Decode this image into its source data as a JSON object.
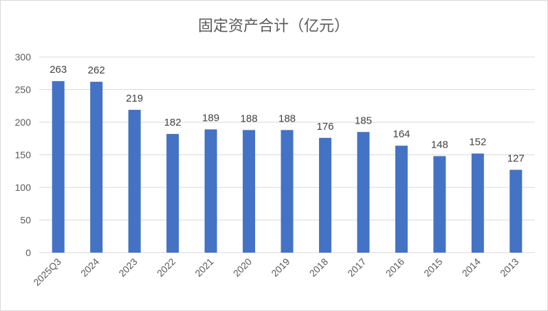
{
  "chart_data": {
    "type": "bar",
    "title": "固定资产合计（亿元）",
    "categories": [
      "2025Q3",
      "2024",
      "2023",
      "2022",
      "2021",
      "2020",
      "2019",
      "2018",
      "2017",
      "2016",
      "2015",
      "2014",
      "2013"
    ],
    "values": [
      263,
      262,
      219,
      182,
      189,
      188,
      188,
      176,
      185,
      164,
      148,
      152,
      127
    ],
    "ylim": [
      0,
      300
    ],
    "yticks": [
      0,
      50,
      100,
      150,
      200,
      250,
      300
    ],
    "grid": true,
    "legend": "none",
    "bar_color": "#4472c4"
  }
}
